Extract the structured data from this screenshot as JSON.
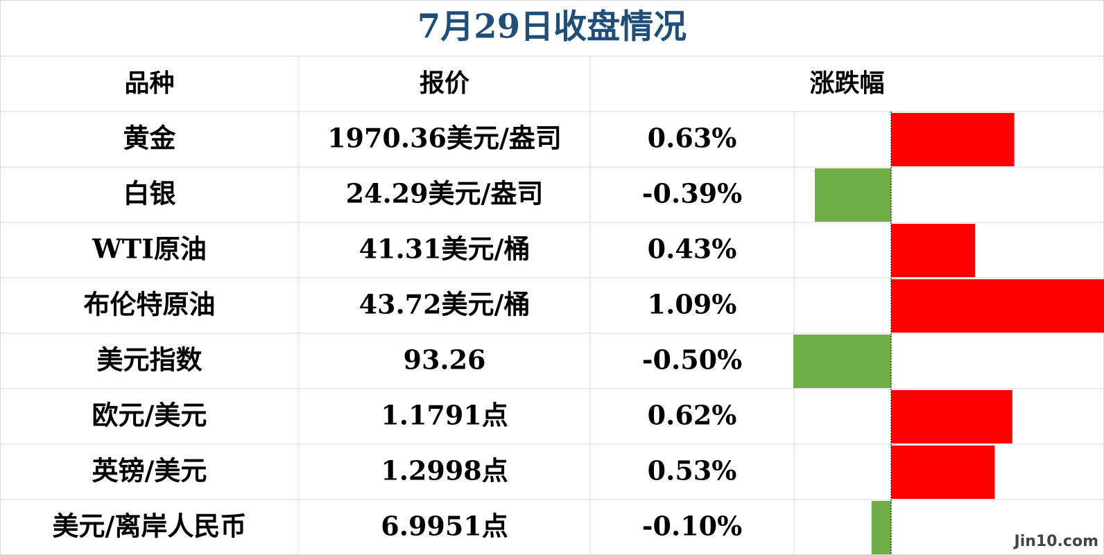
{
  "title": "7月29日收盘情况",
  "table": {
    "header": [
      "品种",
      "报价",
      "涨跌幅"
    ],
    "rows": [
      {
        "name": "黄金",
        "price": "1970.36美元/盎司",
        "change": {
          "value": 0.63,
          "label": "0.63%"
        }
      },
      {
        "name": "白银",
        "price": "24.29美元/盎司",
        "change": {
          "value": -0.39,
          "label": "-0.39%"
        }
      },
      {
        "name": "WTI原油",
        "price": "41.31美元/桶",
        "change": {
          "value": 0.43,
          "label": "0.43%"
        }
      },
      {
        "name": "布伦特原油",
        "price": "43.72美元/桶",
        "change": {
          "value": 1.09,
          "label": "1.09%"
        }
      },
      {
        "name": "美元指数",
        "price": "93.26",
        "change": {
          "value": -0.5,
          "label": "-0.50%"
        }
      },
      {
        "name": "欧元/美元",
        "price": "1.1791点",
        "change": {
          "value": 0.62,
          "label": "0.62%"
        }
      },
      {
        "name": "英镑/美元",
        "price": "1.2998点",
        "change": {
          "value": 0.53,
          "label": "0.53%"
        }
      },
      {
        "name": "美元/离岸人民币",
        "price": "6.9951点",
        "change": {
          "value": -0.1,
          "label": "-0.10%"
        }
      }
    ],
    "up_color": "#ff0000",
    "down_color": "#70ad47"
  },
  "watermark": "Jin10.com"
}
